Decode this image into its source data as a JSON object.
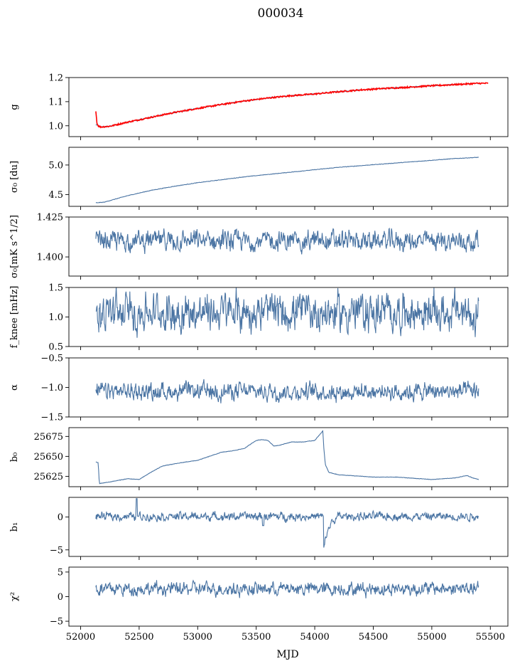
{
  "figure_title": "000034",
  "x_axis": {
    "label": "MJD",
    "range": [
      51900,
      55650
    ],
    "ticks": [
      52000,
      52500,
      53000,
      53500,
      54000,
      54500,
      55000,
      55500
    ],
    "tick_labels": [
      "52000",
      "52500",
      "53000",
      "53500",
      "54000",
      "54500",
      "55000",
      "55500"
    ]
  },
  "colors": {
    "series": "#4a74a3",
    "fit": "#ff0000",
    "axes": "#000000"
  },
  "chart_data": [
    {
      "type": "line",
      "ylabel": "g",
      "ylim": [
        0.955,
        1.2
      ],
      "yticks": [
        1.0,
        1.1,
        1.2
      ],
      "ytick_labels": [
        "1.0",
        "1.1",
        "1.2"
      ],
      "series": [
        {
          "kind": "smooth",
          "color": "#4a74a3",
          "noise": 0.002,
          "x": [
            52130,
            52170,
            52250,
            52400,
            52600,
            52800,
            53000,
            53200,
            53400,
            53600,
            53800,
            54000,
            54200,
            54400,
            54600,
            54800,
            55000,
            55200,
            55400
          ],
          "values": [
            1.005,
            0.995,
            0.998,
            1.015,
            1.035,
            1.055,
            1.072,
            1.088,
            1.103,
            1.115,
            1.125,
            1.132,
            1.141,
            1.149,
            1.155,
            1.16,
            1.166,
            1.171,
            1.176
          ]
        },
        {
          "kind": "smooth",
          "color": "#ff0000",
          "noise": 0.003,
          "x": [
            52130,
            52140,
            52150,
            52170,
            52250,
            52400,
            52600,
            52800,
            53000,
            53200,
            53400,
            53600,
            53800,
            54000,
            54200,
            54400,
            54600,
            54800,
            55000,
            55200,
            55400,
            55480
          ],
          "values": [
            1.06,
            1.01,
            1.0,
            0.995,
            0.998,
            1.015,
            1.035,
            1.055,
            1.072,
            1.088,
            1.103,
            1.115,
            1.125,
            1.132,
            1.141,
            1.149,
            1.155,
            1.16,
            1.166,
            1.171,
            1.176,
            1.176
          ]
        }
      ]
    },
    {
      "type": "line",
      "ylabel": "σ₀ [du]",
      "ylim": [
        4.3,
        5.3
      ],
      "yticks": [
        4.5,
        5.0
      ],
      "ytick_labels": [
        "4.5",
        "5.0"
      ],
      "series": [
        {
          "kind": "smooth",
          "color": "#4a74a3",
          "noise": 0.004,
          "x": [
            52130,
            52200,
            52400,
            52600,
            52800,
            53000,
            53200,
            53400,
            53600,
            53800,
            54000,
            54200,
            54400,
            54600,
            54800,
            55000,
            55200,
            55400
          ],
          "values": [
            4.36,
            4.37,
            4.48,
            4.57,
            4.64,
            4.7,
            4.75,
            4.8,
            4.84,
            4.88,
            4.92,
            4.96,
            4.99,
            5.02,
            5.05,
            5.08,
            5.11,
            5.13
          ]
        }
      ]
    },
    {
      "type": "line",
      "ylabel": "σ₀[mK s^1/2]",
      "ylim": [
        1.388,
        1.425
      ],
      "yticks": [
        1.4,
        1.425
      ],
      "ytick_labels": [
        "1.400",
        "1.425"
      ],
      "series": [
        {
          "kind": "noisy",
          "color": "#4a74a3",
          "mean": 1.41,
          "amplitude": 0.0035,
          "min": 1.396,
          "max": 1.418,
          "x_range": [
            52130,
            55400
          ]
        }
      ]
    },
    {
      "type": "line",
      "ylabel": "f_knee [mHz]",
      "ylim": [
        0.5,
        1.5
      ],
      "yticks": [
        0.5,
        1.0,
        1.5
      ],
      "ytick_labels": [
        "0.5",
        "1.0",
        "1.5"
      ],
      "series": [
        {
          "kind": "noisy",
          "color": "#4a74a3",
          "mean": 1.08,
          "amplitude": 0.18,
          "min": 0.6,
          "max": 1.52,
          "x_range": [
            52130,
            55400
          ]
        }
      ]
    },
    {
      "type": "line",
      "ylabel": "α",
      "ylim": [
        -1.5,
        -0.5
      ],
      "yticks": [
        -1.5,
        -1.0,
        -0.5
      ],
      "ytick_labels": [
        "−1.5",
        "−1.0",
        "−0.5"
      ],
      "series": [
        {
          "kind": "noisy",
          "color": "#4a74a3",
          "mean": -1.07,
          "amplitude": 0.08,
          "min": -1.43,
          "max": -0.83,
          "x_range": [
            52130,
            55400
          ]
        }
      ]
    },
    {
      "type": "line",
      "ylabel": "b₀",
      "ylim": [
        25612,
        25686
      ],
      "yticks": [
        25625,
        25650,
        25675
      ],
      "ytick_labels": [
        "25625",
        "25650",
        "25675"
      ],
      "series": [
        {
          "kind": "smooth",
          "color": "#4a74a3",
          "noise": 0.25,
          "x": [
            52130,
            52150,
            52160,
            52250,
            52400,
            52500,
            52600,
            52700,
            52900,
            53000,
            53100,
            53200,
            53300,
            53400,
            53500,
            53550,
            53600,
            53650,
            53700,
            53800,
            53900,
            54000,
            54070,
            54075,
            54090,
            54120,
            54200,
            54300,
            54500,
            54700,
            54900,
            55000,
            55100,
            55200,
            55300,
            55350,
            55400
          ],
          "values": [
            25643,
            25642,
            25616,
            25618,
            25622,
            25621,
            25630,
            25638,
            25643,
            25645,
            25650,
            25655,
            25657,
            25660,
            25670,
            25671,
            25670,
            25663,
            25664,
            25668,
            25668,
            25670,
            25682,
            25665,
            25640,
            25630,
            25627,
            25626,
            25624,
            25624,
            25622,
            25621,
            25622,
            25623,
            25626,
            25623,
            25621
          ]
        }
      ]
    },
    {
      "type": "line",
      "ylabel": "b₁",
      "ylim": [
        -6,
        3
      ],
      "yticks": [
        -5,
        0
      ],
      "ytick_labels": [
        "−5",
        "0"
      ],
      "series": [
        {
          "kind": "noisy",
          "color": "#4a74a3",
          "mean": 0.1,
          "amplitude": 0.35,
          "min": -5.5,
          "max": 3,
          "x_range": [
            52130,
            55400
          ],
          "features": [
            {
              "x": 52480,
              "value": 2.8
            },
            {
              "x": 53560,
              "value": -1.3
            },
            {
              "x": 54075,
              "value": -5.4,
              "recovery": 120
            }
          ]
        }
      ]
    },
    {
      "type": "line",
      "ylabel": "χ²",
      "ylim": [
        -6,
        6
      ],
      "yticks": [
        -5,
        0,
        5
      ],
      "ytick_labels": [
        "−5",
        "0",
        "5"
      ],
      "series": [
        {
          "kind": "noisy",
          "color": "#4a74a3",
          "mean": 1.6,
          "amplitude": 0.75,
          "min": -0.8,
          "max": 4.6,
          "x_range": [
            52130,
            55400
          ]
        }
      ]
    }
  ]
}
